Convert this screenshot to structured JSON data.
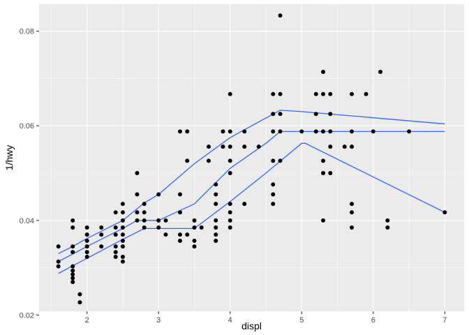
{
  "chart_data": {
    "type": "scatter",
    "xlabel": "displ",
    "ylabel": "1/hwy",
    "xlim": [
      1.33,
      7.27
    ],
    "ylim": [
      0.0208,
      0.0857
    ],
    "x_ticks": [
      2,
      3,
      4,
      5,
      6,
      7
    ],
    "x_tick_labels": [
      "2",
      "3",
      "4",
      "5",
      "6",
      "7"
    ],
    "y_ticks": [
      0.02,
      0.04,
      0.06,
      0.08
    ],
    "y_tick_labels": [
      "0.02",
      "0.04",
      "0.06",
      "0.08"
    ],
    "grid": true,
    "legend": "none",
    "colors": {
      "panel": "#EBEBEB",
      "grid": "#FFFFFF",
      "points": "#000000",
      "lines": "#3366FF"
    },
    "points": [
      [
        1.6,
        0.0345
      ],
      [
        1.6,
        0.0313
      ],
      [
        1.6,
        0.0303
      ],
      [
        1.8,
        0.04
      ],
      [
        1.8,
        0.0385
      ],
      [
        1.8,
        0.0345
      ],
      [
        1.8,
        0.0333
      ],
      [
        1.8,
        0.0303
      ],
      [
        1.8,
        0.0294
      ],
      [
        1.8,
        0.0286
      ],
      [
        1.8,
        0.0278
      ],
      [
        1.8,
        0.027
      ],
      [
        1.9,
        0.0244
      ],
      [
        1.9,
        0.0227
      ],
      [
        2.0,
        0.0385
      ],
      [
        2.0,
        0.037
      ],
      [
        2.0,
        0.0357
      ],
      [
        2.0,
        0.0345
      ],
      [
        2.0,
        0.0333
      ],
      [
        2.0,
        0.0323
      ],
      [
        2.2,
        0.0385
      ],
      [
        2.2,
        0.037
      ],
      [
        2.2,
        0.0345
      ],
      [
        2.4,
        0.0417
      ],
      [
        2.4,
        0.0385
      ],
      [
        2.4,
        0.037
      ],
      [
        2.4,
        0.0345
      ],
      [
        2.4,
        0.0333
      ],
      [
        2.4,
        0.0323
      ],
      [
        2.5,
        0.0435
      ],
      [
        2.5,
        0.0417
      ],
      [
        2.5,
        0.04
      ],
      [
        2.5,
        0.0385
      ],
      [
        2.5,
        0.037
      ],
      [
        2.5,
        0.0357
      ],
      [
        2.5,
        0.0345
      ],
      [
        2.5,
        0.0323
      ],
      [
        2.5,
        0.0313
      ],
      [
        2.7,
        0.05
      ],
      [
        2.7,
        0.0455
      ],
      [
        2.7,
        0.0417
      ],
      [
        2.7,
        0.04
      ],
      [
        2.8,
        0.0435
      ],
      [
        2.8,
        0.0417
      ],
      [
        2.8,
        0.04
      ],
      [
        2.8,
        0.0385
      ],
      [
        3.0,
        0.0455
      ],
      [
        3.0,
        0.04
      ],
      [
        3.0,
        0.0385
      ],
      [
        3.1,
        0.04
      ],
      [
        3.1,
        0.037
      ],
      [
        3.3,
        0.0588
      ],
      [
        3.3,
        0.0455
      ],
      [
        3.3,
        0.0417
      ],
      [
        3.3,
        0.037
      ],
      [
        3.3,
        0.0357
      ],
      [
        3.4,
        0.0588
      ],
      [
        3.4,
        0.0526
      ],
      [
        3.4,
        0.037
      ],
      [
        3.5,
        0.04
      ],
      [
        3.5,
        0.0385
      ],
      [
        3.5,
        0.0357
      ],
      [
        3.5,
        0.0345
      ],
      [
        3.6,
        0.0385
      ],
      [
        3.7,
        0.0556
      ],
      [
        3.7,
        0.0526
      ],
      [
        3.8,
        0.0476
      ],
      [
        3.8,
        0.0455
      ],
      [
        3.8,
        0.0435
      ],
      [
        3.8,
        0.04
      ],
      [
        3.8,
        0.0385
      ],
      [
        3.8,
        0.037
      ],
      [
        3.8,
        0.0357
      ],
      [
        3.9,
        0.0588
      ],
      [
        3.9,
        0.0556
      ],
      [
        4.0,
        0.0667
      ],
      [
        4.0,
        0.0588
      ],
      [
        4.0,
        0.0556
      ],
      [
        4.0,
        0.0526
      ],
      [
        4.0,
        0.05
      ],
      [
        4.0,
        0.0435
      ],
      [
        4.0,
        0.0417
      ],
      [
        4.0,
        0.04
      ],
      [
        4.0,
        0.0385
      ],
      [
        4.2,
        0.0588
      ],
      [
        4.2,
        0.0556
      ],
      [
        4.2,
        0.0435
      ],
      [
        4.4,
        0.0556
      ],
      [
        4.6,
        0.0667
      ],
      [
        4.6,
        0.0625
      ],
      [
        4.6,
        0.0588
      ],
      [
        4.6,
        0.0526
      ],
      [
        4.6,
        0.0476
      ],
      [
        4.6,
        0.0455
      ],
      [
        4.6,
        0.0435
      ],
      [
        4.7,
        0.0833
      ],
      [
        4.7,
        0.0667
      ],
      [
        4.7,
        0.0625
      ],
      [
        4.7,
        0.0588
      ],
      [
        4.7,
        0.0526
      ],
      [
        5.0,
        0.0588
      ],
      [
        5.2,
        0.0667
      ],
      [
        5.2,
        0.0625
      ],
      [
        5.2,
        0.0588
      ],
      [
        5.3,
        0.0714
      ],
      [
        5.3,
        0.0667
      ],
      [
        5.3,
        0.0588
      ],
      [
        5.3,
        0.0526
      ],
      [
        5.3,
        0.05
      ],
      [
        5.3,
        0.04
      ],
      [
        5.4,
        0.0667
      ],
      [
        5.4,
        0.0625
      ],
      [
        5.4,
        0.0588
      ],
      [
        5.4,
        0.0556
      ],
      [
        5.4,
        0.05
      ],
      [
        5.6,
        0.0556
      ],
      [
        5.7,
        0.0667
      ],
      [
        5.7,
        0.0588
      ],
      [
        5.7,
        0.0556
      ],
      [
        5.7,
        0.0435
      ],
      [
        5.7,
        0.0417
      ],
      [
        5.7,
        0.0385
      ],
      [
        5.9,
        0.0667
      ],
      [
        6.0,
        0.0588
      ],
      [
        6.1,
        0.0714
      ],
      [
        6.2,
        0.04
      ],
      [
        6.2,
        0.0385
      ],
      [
        6.5,
        0.0588
      ],
      [
        7.0,
        0.0417
      ]
    ],
    "series": [
      {
        "values": [
          [
            1.6,
            0.033
          ],
          [
            1.8,
            0.0345
          ],
          [
            2.0,
            0.0362
          ],
          [
            2.5,
            0.04
          ],
          [
            2.8,
            0.0437
          ],
          [
            3.0,
            0.0455
          ],
          [
            3.5,
            0.052
          ],
          [
            4.0,
            0.0575
          ],
          [
            4.7,
            0.0633
          ],
          [
            5.0,
            0.063
          ],
          [
            6.0,
            0.0617
          ],
          [
            7.0,
            0.0604
          ]
        ]
      },
      {
        "values": [
          [
            1.6,
            0.0313
          ],
          [
            2.0,
            0.0345
          ],
          [
            2.5,
            0.0383
          ],
          [
            2.7,
            0.04
          ],
          [
            3.0,
            0.04
          ],
          [
            3.5,
            0.0435
          ],
          [
            4.0,
            0.051
          ],
          [
            4.5,
            0.0563
          ],
          [
            4.7,
            0.0588
          ],
          [
            7.0,
            0.0588
          ]
        ]
      },
      {
        "values": [
          [
            1.6,
            0.0288
          ],
          [
            2.0,
            0.032
          ],
          [
            2.5,
            0.036
          ],
          [
            2.8,
            0.0383
          ],
          [
            3.0,
            0.0383
          ],
          [
            3.5,
            0.0383
          ],
          [
            4.0,
            0.044
          ],
          [
            4.5,
            0.05
          ],
          [
            5.0,
            0.0563
          ],
          [
            5.05,
            0.0563
          ],
          [
            7.0,
            0.0417
          ]
        ]
      }
    ]
  }
}
